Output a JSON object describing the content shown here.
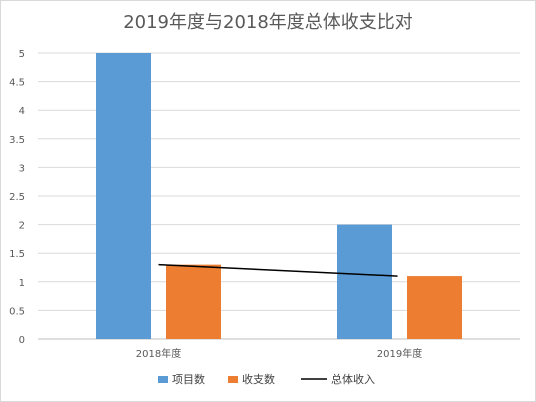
{
  "chart_data": {
    "type": "bar",
    "title": "2019年度与2018年度总体收支比对",
    "categories": [
      "2018年度",
      "2019年度"
    ],
    "series": [
      {
        "name": "项目数",
        "type": "bar",
        "values": [
          5,
          2
        ],
        "color": "#5b9bd5"
      },
      {
        "name": "收支数",
        "type": "bar",
        "values": [
          1.3,
          1.1
        ],
        "color": "#ed7d31"
      },
      {
        "name": "总体收入",
        "type": "line",
        "values": [
          1.3,
          1.1
        ],
        "color": "#000000"
      }
    ],
    "ylim": [
      0,
      5
    ],
    "yticks": [
      "0",
      "0.5",
      "1",
      "1.5",
      "2",
      "2.5",
      "3",
      "3.5",
      "4",
      "4.5",
      "5"
    ],
    "grid": true,
    "legend_position": "bottom"
  }
}
